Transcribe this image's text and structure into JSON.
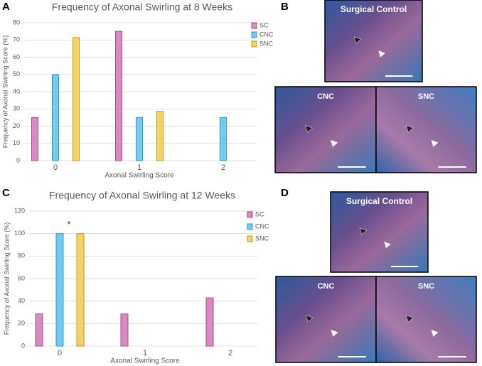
{
  "panel_letters": [
    "A",
    "B",
    "C",
    "D"
  ],
  "image_groups": [
    {
      "captions": [
        "Surgical Control",
        "CNC",
        "SNC"
      ]
    },
    {
      "captions": [
        "Surgical Control",
        "CNC",
        "SNC"
      ]
    }
  ],
  "chart_data": [
    {
      "type": "bar",
      "title": "Frequency of Axonal Swirling at 8 Weeks",
      "xlabel": "Axonal Swirling Score",
      "ylabel": "Frequency of Axonal Swirling Score (%)",
      "categories": [
        "0",
        "1",
        "2"
      ],
      "series": [
        {
          "name": "SC",
          "color": "#d98bc0",
          "values": [
            25,
            75,
            0
          ]
        },
        {
          "name": "CNC",
          "color": "#70cdf0",
          "values": [
            50,
            25,
            25
          ]
        },
        {
          "name": "SNC",
          "color": "#f6d166",
          "values": [
            71.4,
            28.6,
            0
          ]
        }
      ],
      "ylim": [
        0,
        80
      ],
      "yticks": [
        0,
        10,
        20,
        30,
        40,
        50,
        60,
        70,
        80
      ],
      "grid": true,
      "legend": "upper right"
    },
    {
      "type": "bar",
      "title": "Frequency of Axonal Swirling at 12 Weeks",
      "xlabel": "Axonal Swirling Score",
      "ylabel": "Frequency of Axonal Swirling Score (%)",
      "categories": [
        "0",
        "1",
        "2"
      ],
      "series": [
        {
          "name": "SC",
          "color": "#d98bc0",
          "values": [
            28.6,
            28.6,
            42.9
          ]
        },
        {
          "name": "CNC",
          "color": "#70cdf0",
          "values": [
            100,
            0,
            0
          ]
        },
        {
          "name": "SNC",
          "color": "#f6d166",
          "values": [
            100,
            0,
            0
          ]
        }
      ],
      "annotation": "*",
      "ylim": [
        0,
        120
      ],
      "yticks": [
        0,
        20,
        40,
        60,
        80,
        100,
        120
      ],
      "grid": true,
      "legend": "upper right"
    }
  ]
}
